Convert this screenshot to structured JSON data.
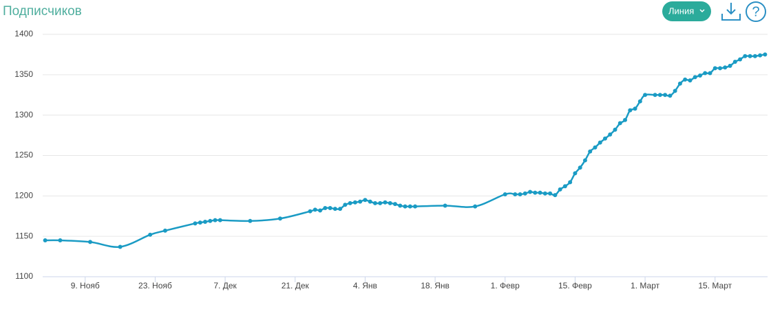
{
  "chart_data": {
    "type": "line",
    "title": "Подписчиков",
    "x": [
      -8,
      -5,
      1,
      7,
      13,
      16,
      22,
      23,
      24,
      25,
      26,
      27,
      33,
      39,
      45,
      46,
      47,
      48,
      49,
      50,
      51,
      52,
      53,
      54,
      55,
      56,
      57,
      58,
      59,
      60,
      61,
      62,
      63,
      64,
      65,
      66,
      72,
      78,
      84,
      86,
      87,
      88,
      89,
      90,
      91,
      92,
      93,
      94,
      95,
      96,
      97,
      98,
      99,
      100,
      101,
      102,
      103,
      104,
      105,
      106,
      107,
      108,
      109,
      110,
      111,
      112,
      114,
      115,
      116,
      117,
      118,
      119,
      120,
      121,
      122,
      123,
      124,
      125,
      126,
      127,
      128,
      129,
      130,
      131,
      132,
      133,
      134,
      135,
      136
    ],
    "series": [
      {
        "name": "Подписчиков",
        "color": "#1a9bc4",
        "values": [
          1145,
          1145,
          1143,
          1137,
          1152,
          1157,
          1166,
          1167,
          1168,
          1169,
          1170,
          1170,
          1169,
          1172,
          1181,
          1183,
          1182,
          1185,
          1185,
          1184,
          1184,
          1189,
          1191,
          1192,
          1193,
          1195,
          1193,
          1191,
          1191,
          1192,
          1191,
          1190,
          1188,
          1187,
          1187,
          1187,
          1188,
          1187,
          1202,
          1202,
          1202,
          1203,
          1205,
          1204,
          1204,
          1203,
          1203,
          1201,
          1208,
          1212,
          1217,
          1228,
          1235,
          1244,
          1255,
          1260,
          1266,
          1271,
          1276,
          1282,
          1290,
          1294,
          1306,
          1308,
          1317,
          1325,
          1325,
          1325,
          1325,
          1324,
          1330,
          1339,
          1344,
          1343,
          1347,
          1349,
          1352,
          1352,
          1358,
          1358,
          1359,
          1361,
          1366,
          1369,
          1373,
          1373,
          1373,
          1374,
          1375
        ]
      }
    ],
    "xlim": [
      -8.5,
      136.5
    ],
    "xticks": [
      {
        "value": 0,
        "label": "9. Нояб"
      },
      {
        "value": 14,
        "label": "23. Нояб"
      },
      {
        "value": 28,
        "label": "7. Дек"
      },
      {
        "value": 42,
        "label": "21. Дек"
      },
      {
        "value": 56,
        "label": "4. Янв"
      },
      {
        "value": 70,
        "label": "18. Янв"
      },
      {
        "value": 84,
        "label": "1. Февр"
      },
      {
        "value": 98,
        "label": "15. Февр"
      },
      {
        "value": 112,
        "label": "1. Март"
      },
      {
        "value": 126,
        "label": "15. Март"
      }
    ],
    "ylim": [
      1100,
      1400
    ],
    "yticks": [
      1100,
      1150,
      1200,
      1250,
      1300,
      1350,
      1400
    ],
    "grid": true
  },
  "toolbar": {
    "chart_type_button": "Линия",
    "help": "?"
  }
}
